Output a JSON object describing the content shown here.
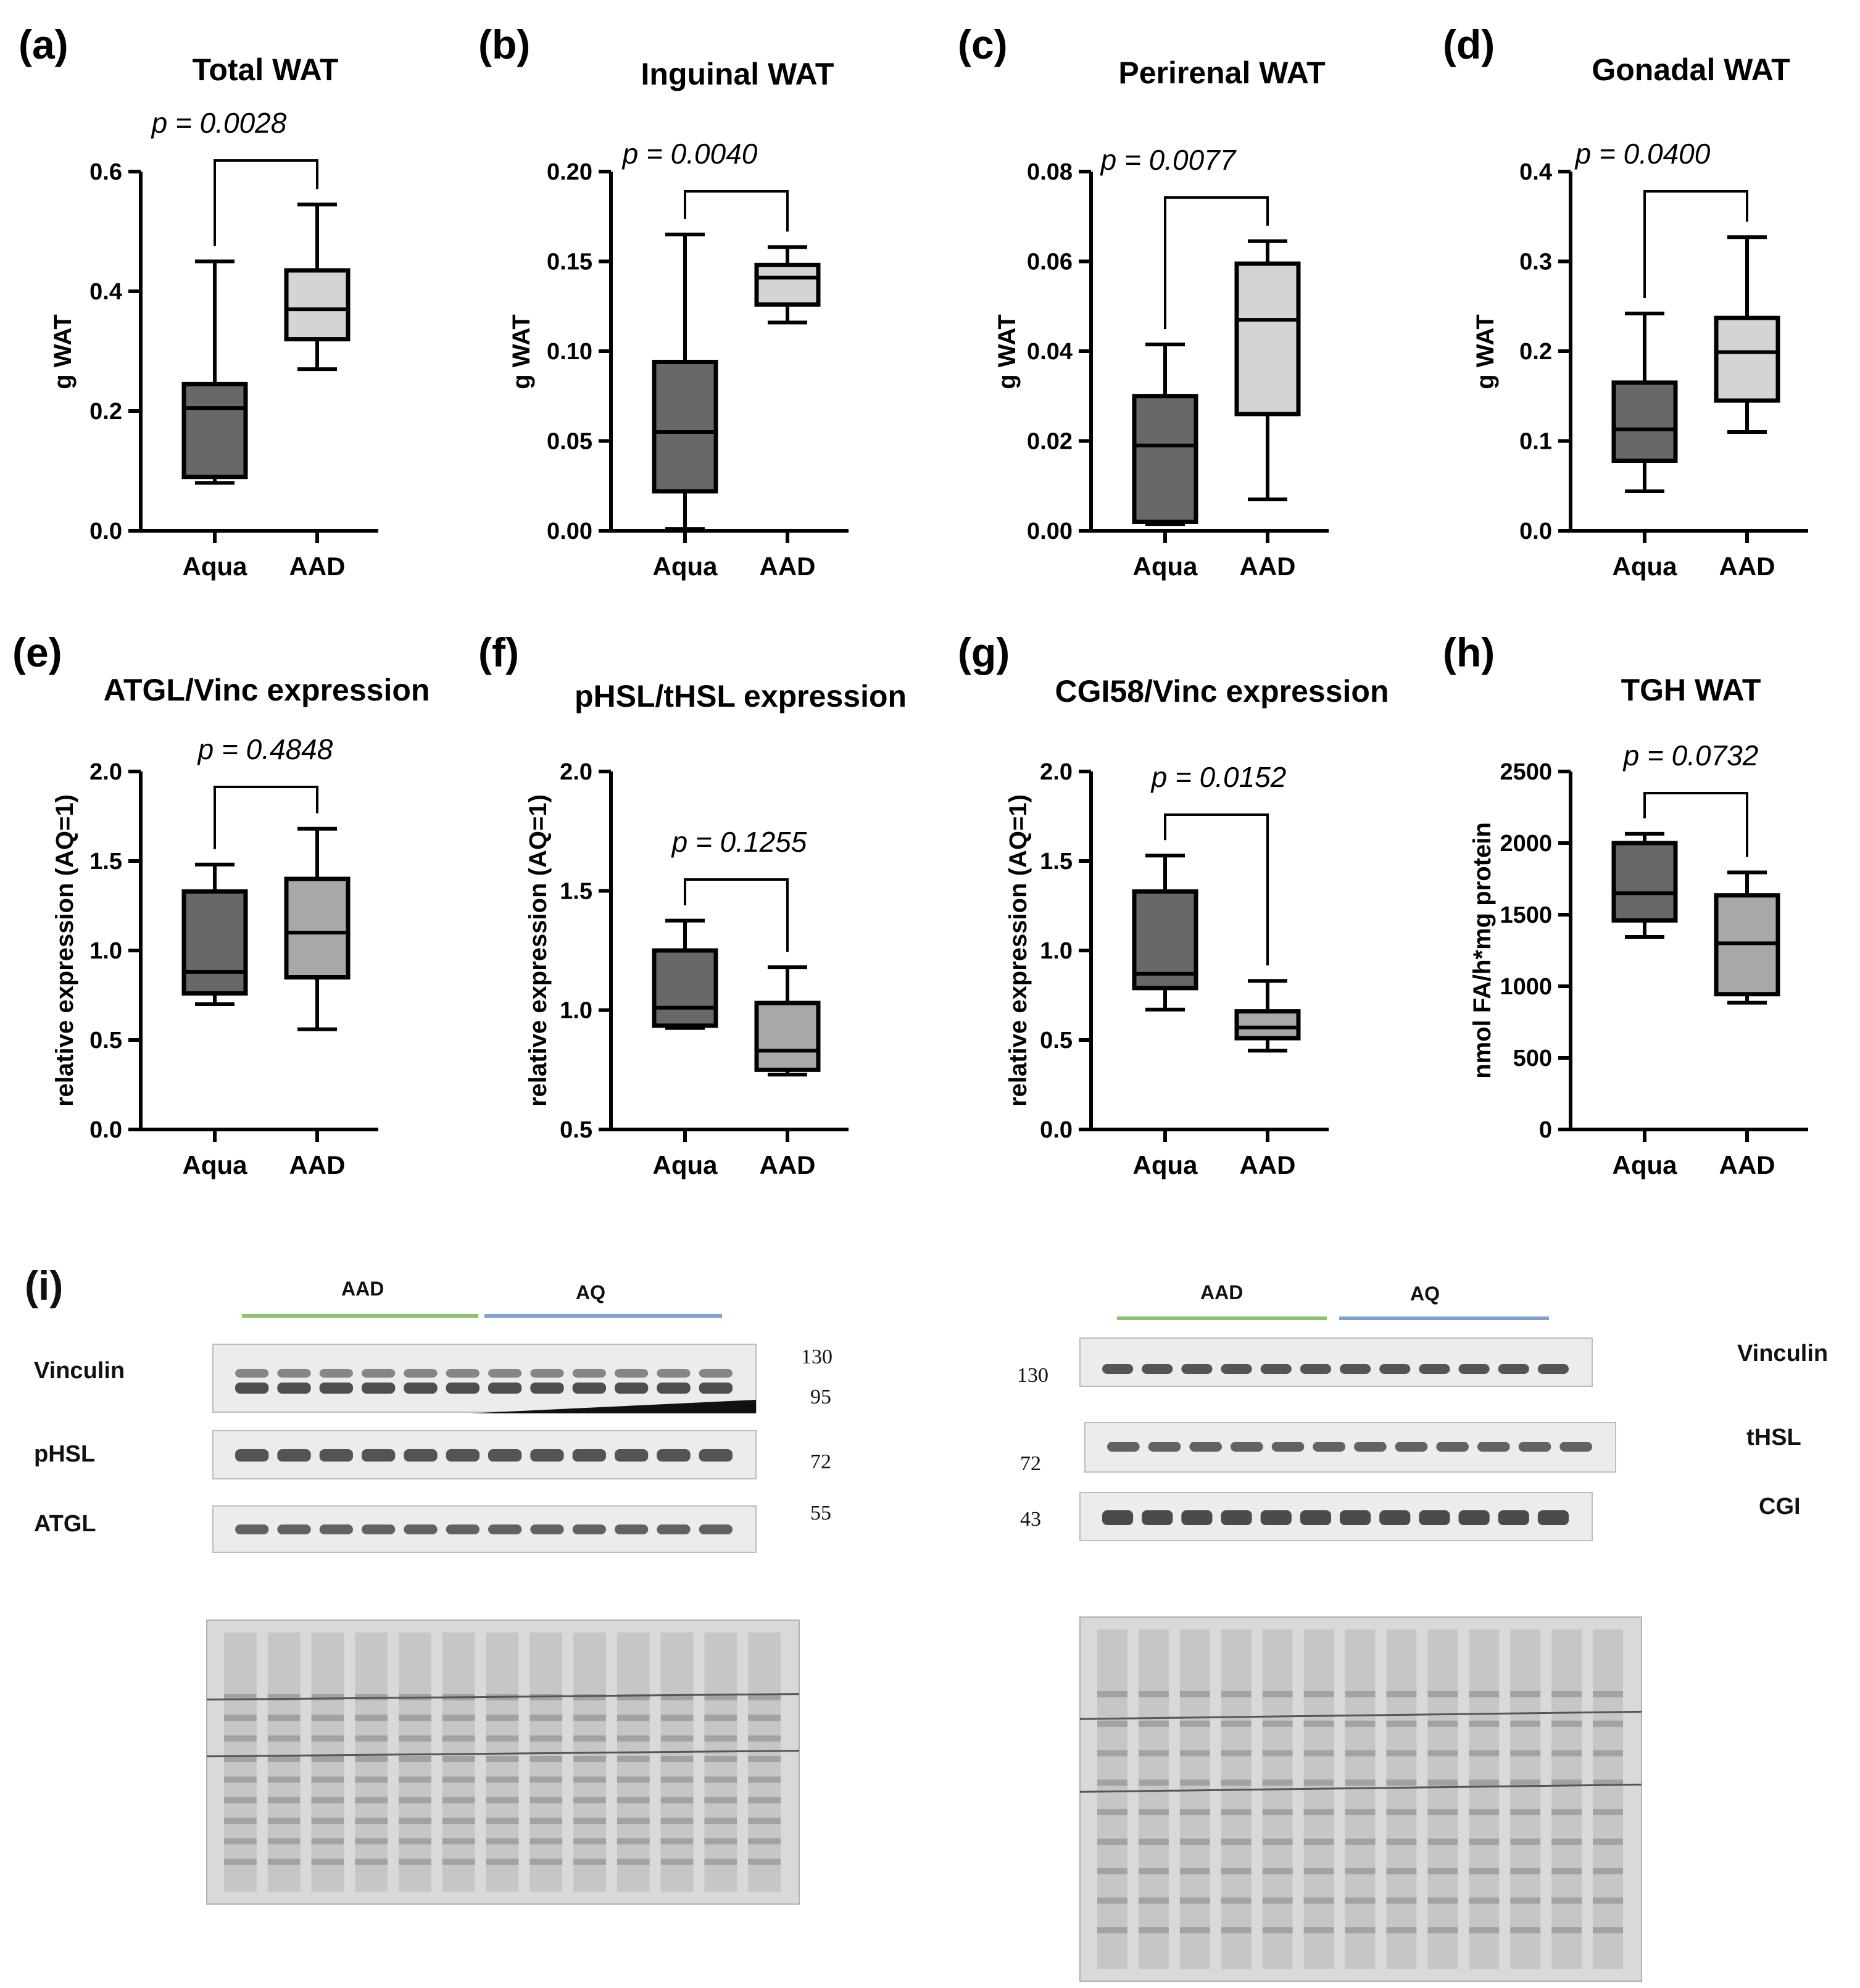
{
  "figure": {
    "panel_i_label": "(i)"
  },
  "chart_data": [
    {
      "panel": "(a)",
      "type": "boxplot",
      "title": "Total WAT",
      "ylabel": "g WAT",
      "xlabel": "",
      "ylim": [
        0,
        0.6
      ],
      "yticks": [
        "0.0",
        "0.2",
        "0.4",
        "0.6"
      ],
      "pvalue": "p = 0.0028",
      "categories": [
        "Aqua",
        "AAD"
      ],
      "boxes": [
        {
          "name": "Aqua",
          "min": 0.08,
          "q1": 0.09,
          "median": 0.205,
          "q3": 0.245,
          "max": 0.45,
          "color": "#686868"
        },
        {
          "name": "AAD",
          "min": 0.27,
          "q1": 0.32,
          "median": 0.37,
          "q3": 0.435,
          "max": 0.545,
          "color": "#d4d4d4"
        }
      ]
    },
    {
      "panel": "(b)",
      "type": "boxplot",
      "title": "Inguinal WAT",
      "ylabel": "g WAT",
      "xlabel": "",
      "ylim": [
        0,
        0.2
      ],
      "yticks": [
        "0.00",
        "0.05",
        "0.10",
        "0.15",
        "0.20"
      ],
      "pvalue": "p = 0.0040",
      "categories": [
        "Aqua",
        "AAD"
      ],
      "boxes": [
        {
          "name": "Aqua",
          "min": 0.001,
          "q1": 0.022,
          "median": 0.055,
          "q3": 0.094,
          "max": 0.165,
          "color": "#686868"
        },
        {
          "name": "AAD",
          "min": 0.116,
          "q1": 0.126,
          "median": 0.141,
          "q3": 0.148,
          "max": 0.158,
          "color": "#d4d4d4"
        }
      ]
    },
    {
      "panel": "(c)",
      "type": "boxplot",
      "title": "Perirenal WAT",
      "ylabel": "g WAT",
      "xlabel": "",
      "ylim": [
        0,
        0.08
      ],
      "yticks": [
        "0.00",
        "0.02",
        "0.04",
        "0.06",
        "0.08"
      ],
      "pvalue": "p = 0.0077",
      "categories": [
        "Aqua",
        "AAD"
      ],
      "boxes": [
        {
          "name": "Aqua",
          "min": 0.0015,
          "q1": 0.002,
          "median": 0.019,
          "q3": 0.03,
          "max": 0.0415,
          "color": "#686868"
        },
        {
          "name": "AAD",
          "min": 0.007,
          "q1": 0.026,
          "median": 0.047,
          "q3": 0.0595,
          "max": 0.0645,
          "color": "#d4d4d4"
        }
      ]
    },
    {
      "panel": "(d)",
      "type": "boxplot",
      "title": "Gonadal WAT",
      "ylabel": "g WAT",
      "xlabel": "",
      "ylim": [
        0,
        0.4
      ],
      "yticks": [
        "0.0",
        "0.1",
        "0.2",
        "0.3",
        "0.4"
      ],
      "pvalue": "p = 0.0400",
      "categories": [
        "Aqua",
        "AAD"
      ],
      "boxes": [
        {
          "name": "Aqua",
          "min": 0.044,
          "q1": 0.078,
          "median": 0.113,
          "q3": 0.165,
          "max": 0.242,
          "color": "#686868"
        },
        {
          "name": "AAD",
          "min": 0.11,
          "q1": 0.145,
          "median": 0.199,
          "q3": 0.237,
          "max": 0.327,
          "color": "#d4d4d4"
        }
      ]
    },
    {
      "panel": "(e)",
      "type": "boxplot",
      "title": "ATGL/Vinc expression",
      "ylabel": "relative expression (AQ=1)",
      "xlabel": "",
      "ylim": [
        0,
        2.0
      ],
      "yticks": [
        "0.0",
        "0.5",
        "1.0",
        "1.5",
        "2.0"
      ],
      "pvalue": "p = 0.4848",
      "categories": [
        "Aqua",
        "AAD"
      ],
      "boxes": [
        {
          "name": "Aqua",
          "min": 0.7,
          "q1": 0.76,
          "median": 0.88,
          "q3": 1.33,
          "max": 1.48,
          "color": "#686868"
        },
        {
          "name": "AAD",
          "min": 0.56,
          "q1": 0.85,
          "median": 1.1,
          "q3": 1.4,
          "max": 1.68,
          "color": "#a8a8ab"
        }
      ]
    },
    {
      "panel": "(f)",
      "type": "boxplot",
      "title": "pHSL/tHSL expression",
      "ylabel": "relative expression (AQ=1)",
      "xlabel": "",
      "ylim": [
        0.5,
        2.0
      ],
      "yticks": [
        "0.5",
        "1.0",
        "1.5",
        "2.0"
      ],
      "pvalue": "p = 0.1255",
      "categories": [
        "Aqua",
        "AAD"
      ],
      "boxes": [
        {
          "name": "Aqua",
          "min": 0.925,
          "q1": 0.935,
          "median": 1.01,
          "q3": 1.25,
          "max": 1.375,
          "color": "#686868"
        },
        {
          "name": "AAD",
          "min": 0.73,
          "q1": 0.75,
          "median": 0.83,
          "q3": 1.03,
          "max": 1.18,
          "color": "#a8a8ab"
        }
      ]
    },
    {
      "panel": "(g)",
      "type": "boxplot",
      "title": "CGI58/Vinc expression",
      "ylabel": "relative expression (AQ=1)",
      "xlabel": "",
      "ylim": [
        0,
        2.0
      ],
      "yticks": [
        "0.0",
        "0.5",
        "1.0",
        "1.5",
        "2.0"
      ],
      "pvalue": "p = 0.0152",
      "categories": [
        "Aqua",
        "AAD"
      ],
      "boxes": [
        {
          "name": "Aqua",
          "min": 0.67,
          "q1": 0.79,
          "median": 0.87,
          "q3": 1.33,
          "max": 1.53,
          "color": "#686868"
        },
        {
          "name": "AAD",
          "min": 0.44,
          "q1": 0.51,
          "median": 0.57,
          "q3": 0.66,
          "max": 0.83,
          "color": "#a8a8ab"
        }
      ]
    },
    {
      "panel": "(h)",
      "type": "boxplot",
      "title": "TGH WAT",
      "ylabel": "nmol FA/h*mg protein",
      "xlabel": "",
      "ylim": [
        0,
        2500
      ],
      "yticks": [
        "0",
        "500",
        "1000",
        "1500",
        "2000",
        "2500"
      ],
      "pvalue": "p = 0.0732",
      "categories": [
        "Aqua",
        "AAD"
      ],
      "boxes": [
        {
          "name": "Aqua",
          "min": 1345,
          "q1": 1460,
          "median": 1650,
          "q3": 2000,
          "max": 2065,
          "color": "#686868"
        },
        {
          "name": "AAD",
          "min": 885,
          "q1": 945,
          "median": 1300,
          "q3": 1635,
          "max": 1795,
          "color": "#a8a8ab"
        }
      ]
    }
  ],
  "blots": {
    "left": {
      "group_labels": [
        "AAD",
        "AQ"
      ],
      "group_colors": [
        "#8dc26a",
        "#7e9fd2"
      ],
      "proteins": [
        "Vinculin",
        "pHSL",
        "ATGL"
      ],
      "markers": [
        "130",
        "95",
        "72",
        "55"
      ]
    },
    "right": {
      "group_labels": [
        "AAD",
        "AQ"
      ],
      "group_colors": [
        "#8dc26a",
        "#7e9fd2"
      ],
      "proteins": [
        "Vinculin",
        "tHSL",
        "CGI"
      ],
      "markers": [
        "130",
        "72",
        "43"
      ]
    }
  }
}
